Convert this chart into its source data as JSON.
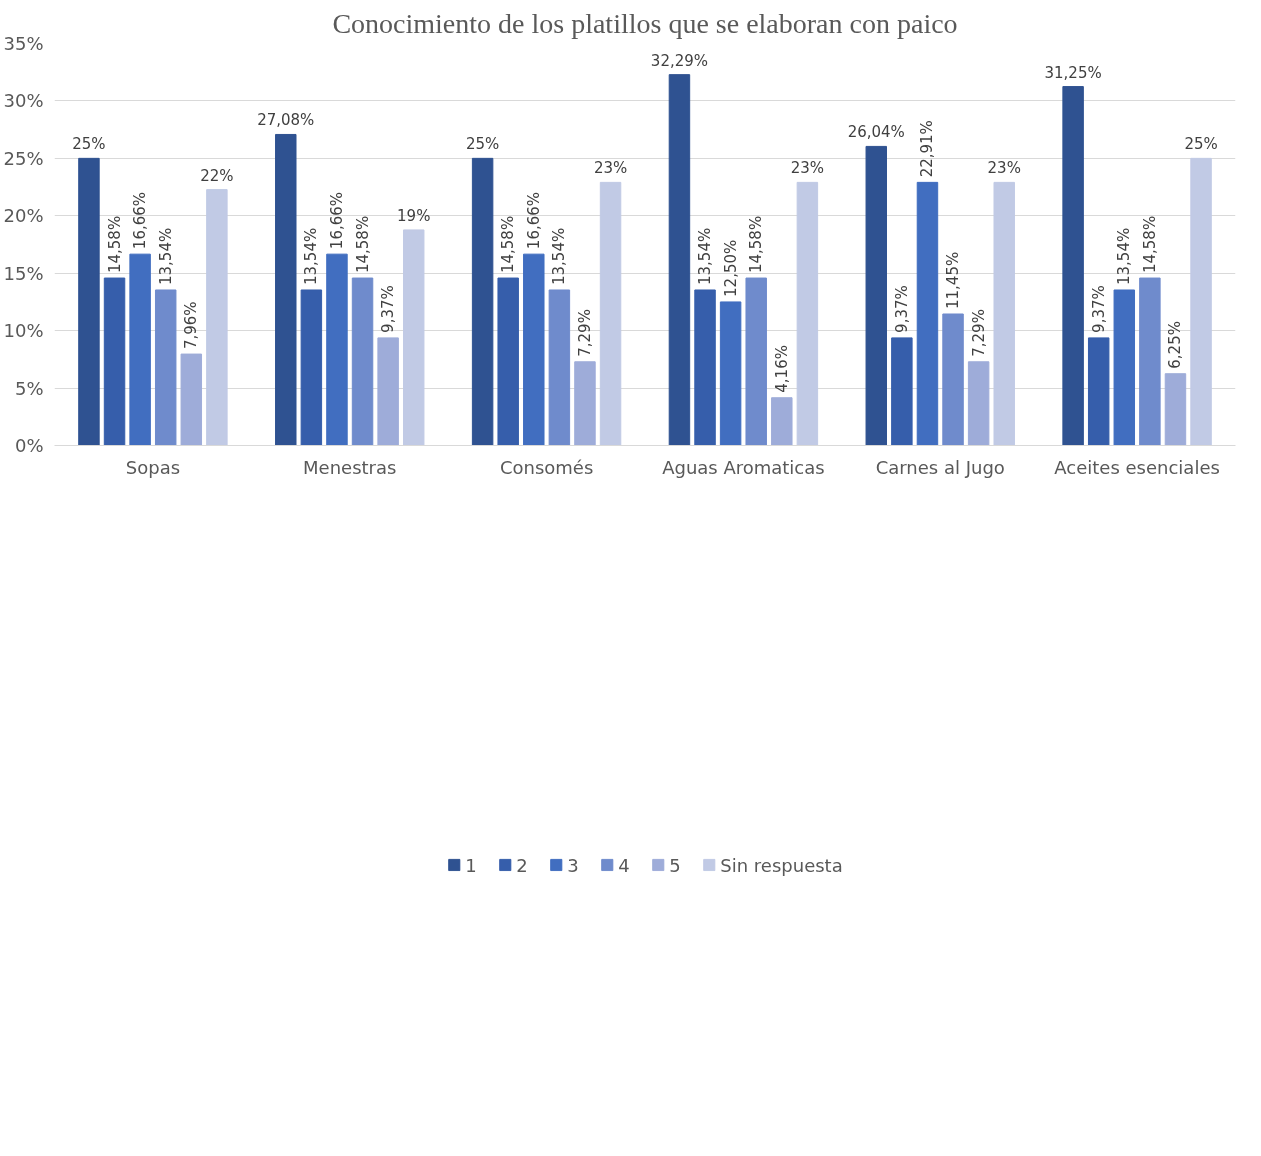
{
  "chart_data": {
    "type": "bar",
    "title": "Conocimiento de los platillos que se elaboran con paico",
    "categories": [
      "Sopas",
      "Menestras",
      "Consomés",
      "Aguas Aromaticas",
      "Carnes al Jugo",
      "Aceites esenciales"
    ],
    "series": [
      {
        "name": "1",
        "color": "#2f5291",
        "values": [
          25,
          27.08,
          25,
          32.29,
          26.04,
          31.25
        ],
        "value_labels": [
          "25%",
          "27,08%",
          "25%",
          "32,29%",
          "26,04%",
          "31,25%"
        ]
      },
      {
        "name": "2",
        "color": "#365eab",
        "values": [
          14.58,
          13.54,
          14.58,
          13.54,
          9.37,
          9.37
        ],
        "value_labels": [
          "14,58%",
          "13,54%",
          "14,58%",
          "13,54%",
          "9,37%",
          "9,37%"
        ]
      },
      {
        "name": "3",
        "color": "#416ec0",
        "values": [
          16.66,
          16.66,
          16.66,
          12.5,
          22.91,
          13.54
        ],
        "value_labels": [
          "16,66%",
          "16,66%",
          "16,66%",
          "12,50%",
          "22,91%",
          "13,54%"
        ]
      },
      {
        "name": "4",
        "color": "#6f8bcc",
        "values": [
          13.54,
          14.58,
          13.54,
          14.58,
          11.45,
          14.58
        ],
        "value_labels": [
          "13,54%",
          "14,58%",
          "13,54%",
          "14,58%",
          "11,45%",
          "14,58%"
        ]
      },
      {
        "name": "5",
        "color": "#9eacd9",
        "values": [
          7.96,
          9.37,
          7.29,
          4.16,
          7.29,
          6.25
        ],
        "value_labels": [
          "7,96%",
          "9,37%",
          "7,29%",
          "4,16%",
          "7,29%",
          "6,25%"
        ]
      },
      {
        "name": "Sin respuesta",
        "color": "#c1cae5",
        "values": [
          22.28,
          18.77,
          22.91,
          22.91,
          22.91,
          25
        ],
        "value_labels": [
          "22%",
          "19%",
          "23%",
          "23%",
          "23%",
          "25%"
        ]
      }
    ],
    "ylim": [
      0,
      35
    ],
    "yticks": [
      {
        "value": 0,
        "label": "0%"
      },
      {
        "value": 5,
        "label": "5%"
      },
      {
        "value": 10,
        "label": "10%"
      },
      {
        "value": 15,
        "label": "15%"
      },
      {
        "value": 20,
        "label": "20%"
      },
      {
        "value": 25,
        "label": "25%"
      },
      {
        "value": 30,
        "label": "30%"
      },
      {
        "value": 35,
        "label": "35%"
      }
    ],
    "grid": "y",
    "legend": "bottom"
  }
}
